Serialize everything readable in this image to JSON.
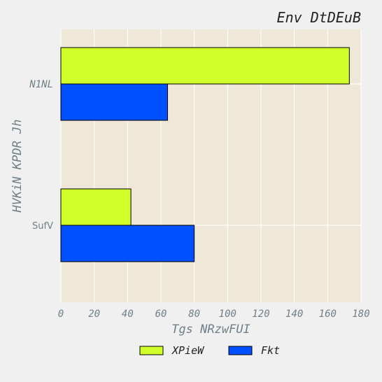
{
  "chart_data": {
    "type": "bar",
    "orientation": "horizontal",
    "title": "Env DtDEuB",
    "xlabel": "Tgs NRzwFUI",
    "ylabel": "HVKiN  KPDR Jh",
    "categories": [
      "N1NL",
      "SufV"
    ],
    "series": [
      {
        "name": "XPieW",
        "color": "#d0ff2a",
        "values": [
          173,
          42
        ]
      },
      {
        "name": "Fkt",
        "color": "#0050ff",
        "values": [
          64,
          80
        ]
      }
    ],
    "xlim": [
      0,
      180
    ],
    "xticks": [
      0,
      20,
      40,
      60,
      80,
      100,
      120,
      140,
      160,
      180
    ],
    "grid": true,
    "legend_position": "bottom-center",
    "plot_background": "#efe8d8",
    "figure_background": "#f0f0f0"
  }
}
